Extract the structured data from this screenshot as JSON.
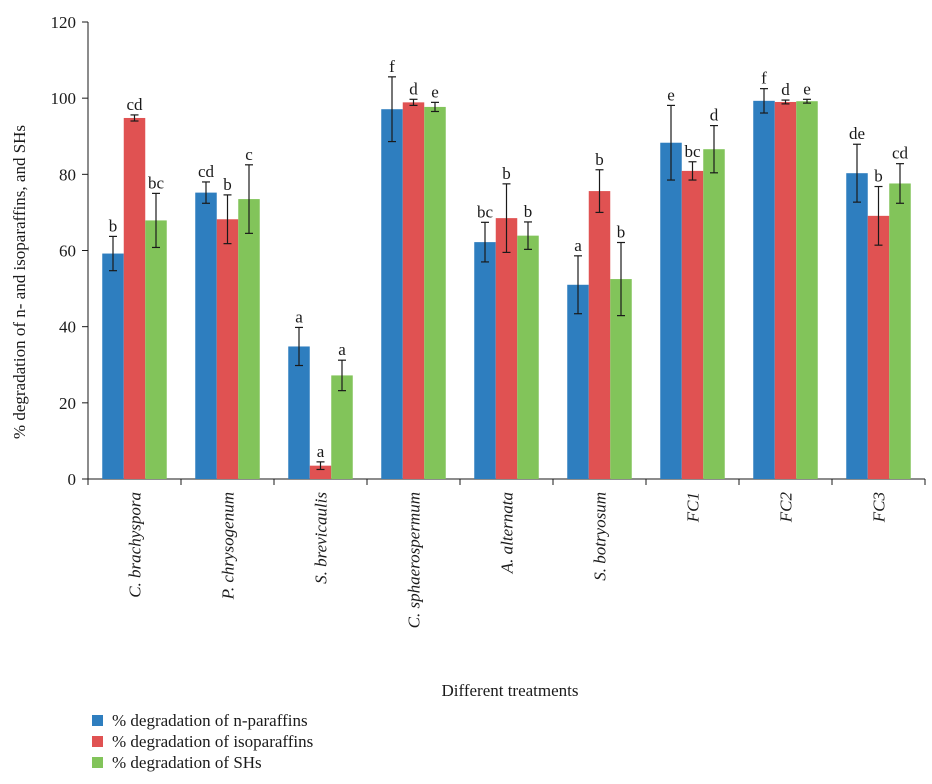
{
  "chart_data": {
    "type": "bar",
    "title": "",
    "xlabel": "Different treatments",
    "ylabel": "% degradation of n- and isoparaffins, and SHs",
    "ylim": [
      0,
      120
    ],
    "yticks": [
      "0",
      "20",
      "40",
      "60",
      "80",
      "100",
      "120"
    ],
    "grid": false,
    "legend_position": "bottom-left",
    "categories": [
      "C. brachyspora",
      "P. chrysogenum",
      "S. brevicaulis",
      "C. sphaerospermum",
      "A. alternata",
      "S. botryosum",
      "FC1",
      "FC2",
      "FC3"
    ],
    "series": [
      {
        "name": "% degradation of n-paraffins",
        "color": "#2e7ebf",
        "values": [
          59.2,
          75.2,
          34.8,
          97.1,
          62.2,
          51.0,
          88.3,
          99.3,
          80.3
        ],
        "errors": [
          4.5,
          2.8,
          5.0,
          8.5,
          5.2,
          7.6,
          9.8,
          3.2,
          7.6
        ],
        "labels": [
          "b",
          "cd",
          "a",
          "f",
          "bc",
          "a",
          "e",
          "f",
          "de"
        ]
      },
      {
        "name": "% degradation of isoparaffins",
        "color": "#e05252",
        "values": [
          94.8,
          68.2,
          3.5,
          98.9,
          68.5,
          75.6,
          80.9,
          99.0,
          69.1
        ],
        "errors": [
          0.8,
          6.4,
          1.0,
          0.8,
          9.0,
          5.6,
          2.4,
          0.5,
          7.7
        ],
        "labels": [
          "cd",
          "b",
          "a",
          "d",
          "b",
          "b",
          "bc",
          "d",
          "b"
        ]
      },
      {
        "name": "% degradation of SHs",
        "color": "#82c45a",
        "values": [
          67.9,
          73.5,
          27.2,
          97.7,
          63.9,
          52.5,
          86.6,
          99.2,
          77.6
        ],
        "errors": [
          7.1,
          9.0,
          4.0,
          1.2,
          3.6,
          9.6,
          6.2,
          0.5,
          5.2
        ],
        "labels": [
          "bc",
          "c",
          "a",
          "e",
          "b",
          "b",
          "d",
          "e",
          "cd"
        ]
      }
    ]
  }
}
